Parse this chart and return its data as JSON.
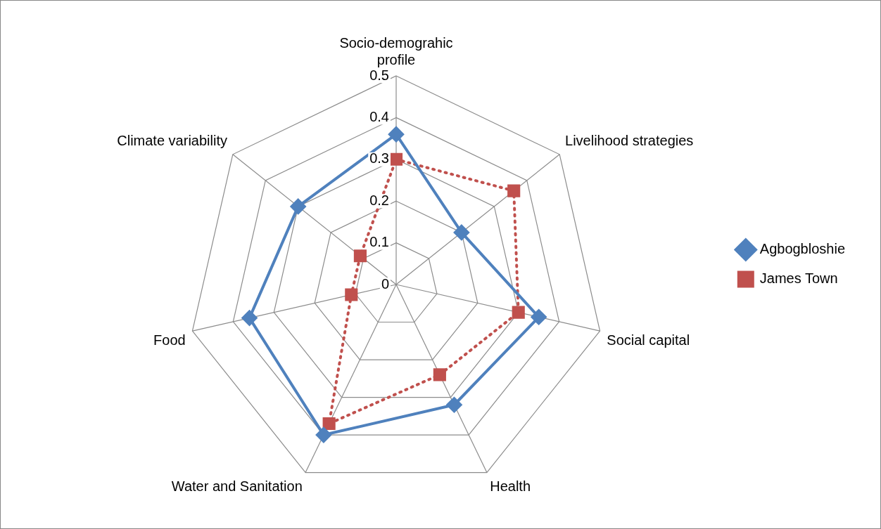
{
  "chart_data": {
    "type": "radar",
    "categories": [
      "Socio-demograhic profile",
      "Livelihood strategies",
      "Social capital",
      "Health",
      "Water and Sanitation",
      "Food",
      "Climate variability"
    ],
    "series": [
      {
        "name": "Agbogbloshie",
        "color": "#4f81bd",
        "values": [
          0.36,
          0.2,
          0.35,
          0.32,
          0.4,
          0.36,
          0.3
        ],
        "marker": "diamond",
        "line_style": "solid"
      },
      {
        "name": "James Town",
        "color": "#c0504d",
        "values": [
          0.3,
          0.36,
          0.3,
          0.24,
          0.37,
          0.11,
          0.11
        ],
        "marker": "square",
        "line_style": "dotted"
      }
    ],
    "ylim": [
      0,
      0.5
    ],
    "yticks": [
      0,
      0.1,
      0.2,
      0.3,
      0.4,
      0.5
    ],
    "grid": true,
    "legend": "right"
  }
}
